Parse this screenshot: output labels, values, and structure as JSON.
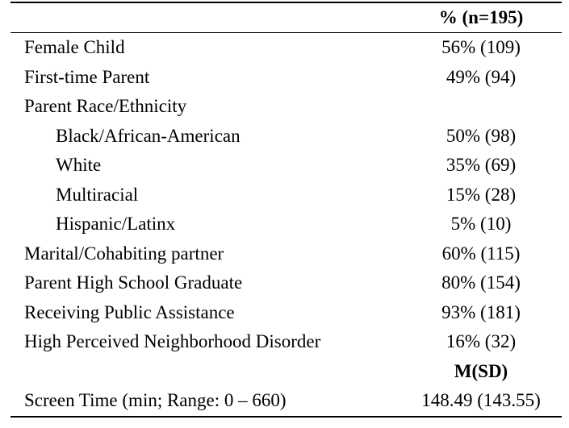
{
  "table": {
    "column_header": "% (n=195)",
    "rows": [
      {
        "label": "Female Child",
        "value": "56% (109)"
      },
      {
        "label": "First-time Parent",
        "value": "49% (94)"
      },
      {
        "label": "Parent Race/Ethnicity",
        "value": ""
      },
      {
        "label": "Black/African-American",
        "value": "50% (98)"
      },
      {
        "label": "White",
        "value": "35% (69)"
      },
      {
        "label": "Multiracial",
        "value": "15% (28)"
      },
      {
        "label": "Hispanic/Latinx",
        "value": "5% (10)"
      },
      {
        "label": "Marital/Cohabiting partner",
        "value": "60% (115)"
      },
      {
        "label": "Parent High School Graduate",
        "value": "80% (154)"
      },
      {
        "label": "Receiving Public Assistance",
        "value": "93% (181)"
      },
      {
        "label": "High Perceived Neighborhood Disorder",
        "value": "16% (32)"
      }
    ],
    "second_header": "M(SD)",
    "final_row": {
      "label": "Screen Time (min; Range: 0 – 660)",
      "value": "148.49 (143.55)"
    }
  }
}
